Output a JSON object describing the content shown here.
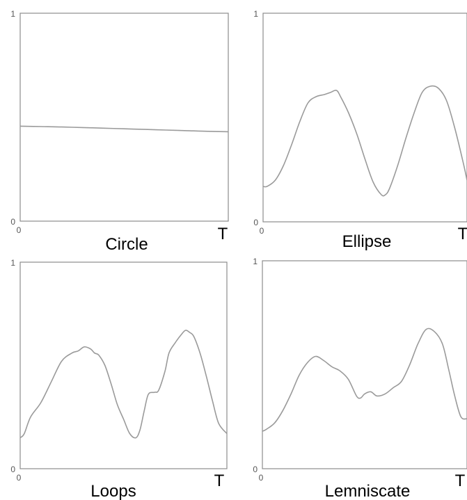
{
  "chart_data": [
    {
      "type": "line",
      "title": "Circle",
      "x_start_label": "0",
      "x_end_label": "T",
      "y_min_label": "0",
      "y_max_label": "1",
      "xlim": [
        0,
        1
      ],
      "ylim": [
        0,
        1
      ],
      "grid": false,
      "series": [
        {
          "x": [
            0.0,
            0.1,
            0.2,
            0.3,
            0.4,
            0.5,
            0.6,
            0.7,
            0.8,
            0.9,
            1.0
          ],
          "values": [
            0.457,
            0.455,
            0.453,
            0.45,
            0.447,
            0.444,
            0.441,
            0.438,
            0.435,
            0.432,
            0.43
          ]
        }
      ]
    },
    {
      "type": "line",
      "title": "Ellipse",
      "x_start_label": "0",
      "x_end_label": "T",
      "y_min_label": "0",
      "y_max_label": "1",
      "xlim": [
        0,
        1
      ],
      "ylim": [
        0,
        1
      ],
      "grid": false,
      "series": [
        {
          "x": [
            0.0,
            0.02,
            0.06,
            0.1,
            0.14,
            0.18,
            0.22,
            0.26,
            0.3,
            0.33,
            0.36,
            0.38,
            0.42,
            0.46,
            0.5,
            0.54,
            0.58,
            0.6,
            0.62,
            0.66,
            0.7,
            0.74,
            0.78,
            0.82,
            0.86,
            0.9,
            0.94,
            0.98,
            1.0
          ],
          "values": [
            0.17,
            0.17,
            0.2,
            0.27,
            0.37,
            0.48,
            0.57,
            0.6,
            0.61,
            0.62,
            0.63,
            0.6,
            0.52,
            0.42,
            0.3,
            0.19,
            0.13,
            0.13,
            0.16,
            0.27,
            0.4,
            0.52,
            0.62,
            0.65,
            0.64,
            0.58,
            0.45,
            0.29,
            0.2
          ]
        }
      ]
    },
    {
      "type": "line",
      "title": "Loops",
      "x_start_label": "0",
      "x_end_label": "T",
      "y_min_label": "0",
      "y_max_label": "1",
      "xlim": [
        0,
        1
      ],
      "ylim": [
        0,
        1
      ],
      "grid": false,
      "series": [
        {
          "x": [
            0.0,
            0.02,
            0.05,
            0.1,
            0.15,
            0.2,
            0.25,
            0.28,
            0.31,
            0.34,
            0.36,
            0.38,
            0.41,
            0.44,
            0.47,
            0.5,
            0.53,
            0.56,
            0.58,
            0.6,
            0.62,
            0.65,
            0.67,
            0.7,
            0.72,
            0.75,
            0.78,
            0.8,
            0.82,
            0.84,
            0.87,
            0.9,
            0.93,
            0.96,
            1.0
          ],
          "values": [
            0.15,
            0.17,
            0.25,
            0.32,
            0.42,
            0.52,
            0.56,
            0.57,
            0.59,
            0.58,
            0.56,
            0.55,
            0.5,
            0.41,
            0.31,
            0.24,
            0.17,
            0.15,
            0.19,
            0.28,
            0.36,
            0.37,
            0.38,
            0.47,
            0.56,
            0.61,
            0.65,
            0.67,
            0.66,
            0.64,
            0.56,
            0.45,
            0.33,
            0.22,
            0.17
          ]
        }
      ]
    },
    {
      "type": "line",
      "title": "Lemniscate",
      "x_start_label": "0",
      "x_end_label": "T",
      "y_min_label": "0",
      "y_max_label": "1",
      "xlim": [
        0,
        1
      ],
      "ylim": [
        0,
        1
      ],
      "grid": false,
      "series": [
        {
          "x": [
            0.0,
            0.02,
            0.06,
            0.1,
            0.14,
            0.18,
            0.22,
            0.26,
            0.3,
            0.34,
            0.38,
            0.42,
            0.46,
            0.48,
            0.5,
            0.53,
            0.56,
            0.6,
            0.64,
            0.68,
            0.72,
            0.76,
            0.8,
            0.84,
            0.88,
            0.91,
            0.94,
            0.97,
            1.0
          ],
          "values": [
            0.18,
            0.19,
            0.22,
            0.28,
            0.36,
            0.45,
            0.51,
            0.54,
            0.52,
            0.49,
            0.47,
            0.43,
            0.35,
            0.34,
            0.36,
            0.37,
            0.35,
            0.36,
            0.39,
            0.42,
            0.5,
            0.6,
            0.67,
            0.66,
            0.6,
            0.48,
            0.35,
            0.25,
            0.24
          ]
        }
      ]
    }
  ]
}
